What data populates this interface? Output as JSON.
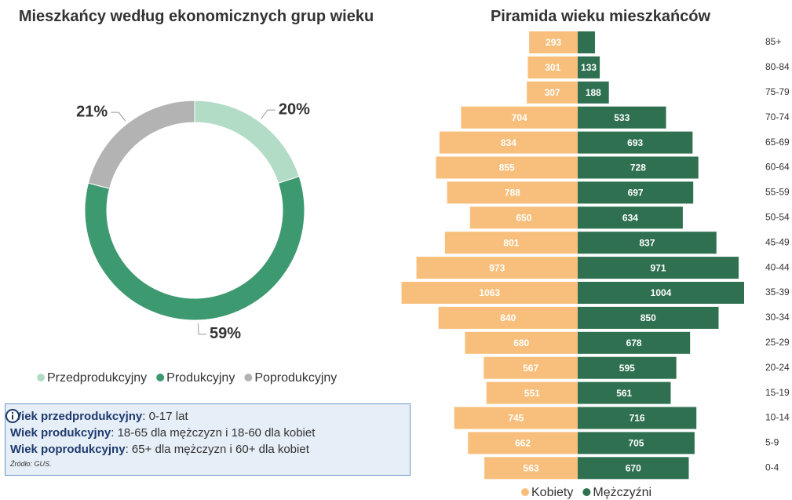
{
  "chart_data": [
    {
      "type": "donut",
      "title": "Mieszkańcy według ekonomicznych grup wieku",
      "categories": [
        "Przedprodukcyjny",
        "Produkcyjny",
        "Poprodukcyjny"
      ],
      "values": [
        20,
        59,
        21
      ],
      "value_labels": [
        "20%",
        "59%",
        "21%"
      ],
      "colors": [
        "#b2dcc6",
        "#3d9970",
        "#b3b3b3"
      ]
    },
    {
      "type": "pyramid",
      "title": "Piramida wieku mieszkańców",
      "categories": [
        "85+",
        "80-84",
        "75-79",
        "70-74",
        "65-69",
        "60-64",
        "55-59",
        "50-54",
        "45-49",
        "40-44",
        "35-39",
        "30-34",
        "25-29",
        "20-24",
        "15-19",
        "10-14",
        "5-9",
        "0-4"
      ],
      "series": [
        {
          "name": "Kobiety",
          "color": "#f8bf7c",
          "values": [
            293,
            301,
            307,
            704,
            834,
            855,
            788,
            650,
            801,
            973,
            1063,
            840,
            680,
            567,
            551,
            745,
            662,
            563
          ]
        },
        {
          "name": "Mężczyźni",
          "color": "#2e7050",
          "values": [
            104,
            133,
            188,
            533,
            693,
            728,
            697,
            634,
            837,
            971,
            1004,
            850,
            678,
            595,
            561,
            716,
            705,
            670
          ]
        }
      ]
    }
  ],
  "info": {
    "lines": [
      {
        "term": "Wiek przedprodukcyjny",
        "text": ": 0-17 lat"
      },
      {
        "term": "Wiek produkcyjny",
        "text": ": 18-65 dla mężczyzn i 18-60 dla kobiet"
      },
      {
        "term": "Wiek poprodukcyjny",
        "text": ": 65+ dla mężczyzn i 60+ dla kobiet"
      }
    ],
    "source": "Źródło: GUS."
  }
}
